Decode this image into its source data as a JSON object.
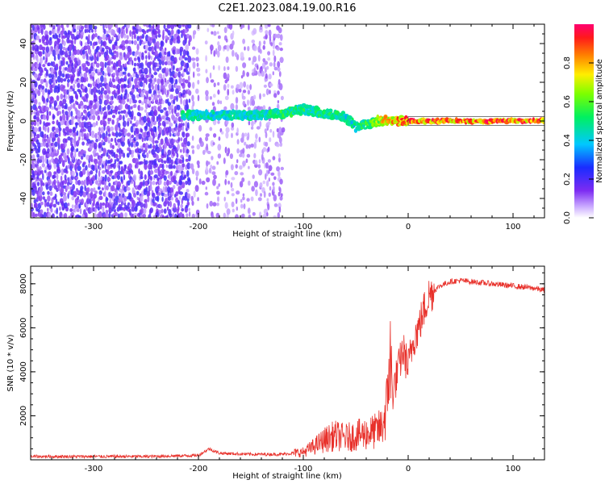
{
  "title": "C2E1.2023.084.19.00.R16",
  "colors": {
    "snr_line": "#e8302a",
    "spectrum_background": "#7b2cf0",
    "spectrum_signal": "#18d4c8"
  },
  "chart_data": [
    {
      "type": "heatmap",
      "xlabel": "Height of straight line (km)",
      "ylabel": "Frequency (Hz)",
      "xlim": [
        -360,
        130
      ],
      "ylim": [
        -50,
        50
      ],
      "xticks": [
        -300,
        -200,
        -100,
        0,
        100
      ],
      "yticks": [
        -40,
        -20,
        0,
        20,
        40
      ],
      "grid": false,
      "colorbar": {
        "label": "Normalized spectral amplitude",
        "range": [
          0,
          1
        ],
        "ticks": [
          "0.0",
          "0.2",
          "0.4",
          "0.6",
          "0.8"
        ]
      },
      "signal_ridge": {
        "x": [
          -215,
          -200,
          -180,
          -160,
          -140,
          -120,
          -100,
          -80,
          -60,
          -50,
          -40,
          -30,
          -20,
          -10,
          0,
          130
        ],
        "freq_hz": [
          3,
          3,
          3,
          3,
          3,
          4,
          6,
          4,
          2,
          -3,
          -2,
          0,
          0,
          0,
          0,
          0
        ],
        "amplitude": [
          0.55,
          0.5,
          0.5,
          0.5,
          0.5,
          0.55,
          0.55,
          0.55,
          0.5,
          0.5,
          0.6,
          0.7,
          0.85,
          0.9,
          0.95,
          0.95
        ]
      },
      "noise_regions": [
        {
          "x_range": [
            -360,
            -210
          ],
          "level": "high"
        },
        {
          "x_range": [
            -210,
            -120
          ],
          "level": "medium"
        },
        {
          "x_range": [
            -120,
            130
          ],
          "level": "none"
        }
      ]
    },
    {
      "type": "line",
      "xlabel": "Height of straight line (km)",
      "ylabel": "SNR (10 * v/v)",
      "xlim": [
        -360,
        130
      ],
      "ylim": [
        0,
        8800
      ],
      "xticks": [
        -300,
        -200,
        -100,
        0,
        100
      ],
      "yticks": [
        2000,
        4000,
        6000,
        8000
      ],
      "grid": false,
      "series": [
        {
          "x": [
            -360,
            -300,
            -250,
            -200,
            -190,
            -180,
            -150,
            -120,
            -100,
            -90,
            -80,
            -70,
            -60,
            -50,
            -40,
            -30,
            -25,
            -20,
            -18,
            -15,
            -10,
            -5,
            0,
            5,
            10,
            15,
            20,
            30,
            40,
            50,
            60,
            70,
            80,
            90,
            100,
            110,
            120,
            130
          ],
          "y": [
            150,
            150,
            150,
            200,
            500,
            300,
            250,
            250,
            350,
            600,
            900,
            1100,
            1000,
            1100,
            1200,
            1300,
            1500,
            2500,
            5000,
            3000,
            4000,
            5000,
            4200,
            5500,
            6000,
            6800,
            7500,
            7900,
            8100,
            8150,
            8100,
            8050,
            8000,
            7950,
            7900,
            7850,
            7800,
            7700
          ]
        }
      ]
    }
  ]
}
